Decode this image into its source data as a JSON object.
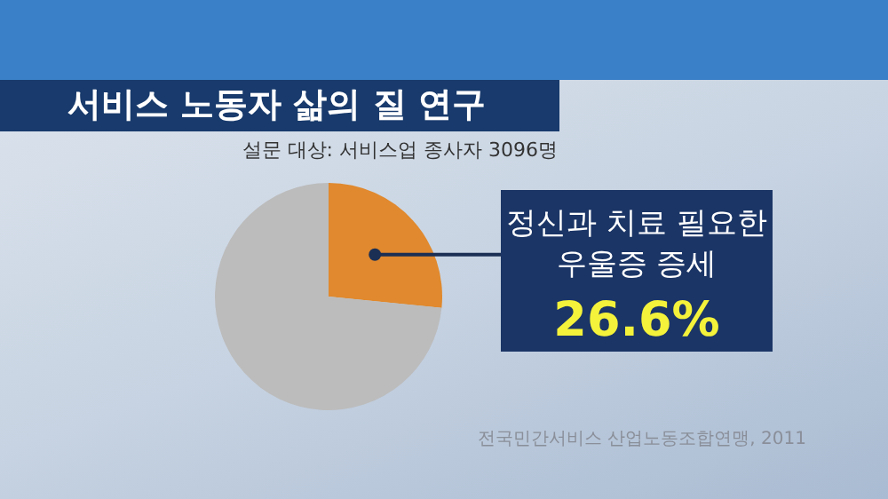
{
  "chart_data": {
    "type": "pie",
    "title": "서비스 노동자 삶의 질 연구",
    "subtitle": "설문 대상: 서비스업 종사자 3096명",
    "categories": [
      "정신과 치료 필요한 우울증 증세",
      null
    ],
    "values": [
      26.6,
      73.4
    ],
    "colors": [
      "#e0892e",
      "#bcbcbc"
    ],
    "value_labels": [
      "26.6%",
      null
    ],
    "annotations": [
      "전국민간서비스 산업노동조합연맹, 2011"
    ]
  }
}
